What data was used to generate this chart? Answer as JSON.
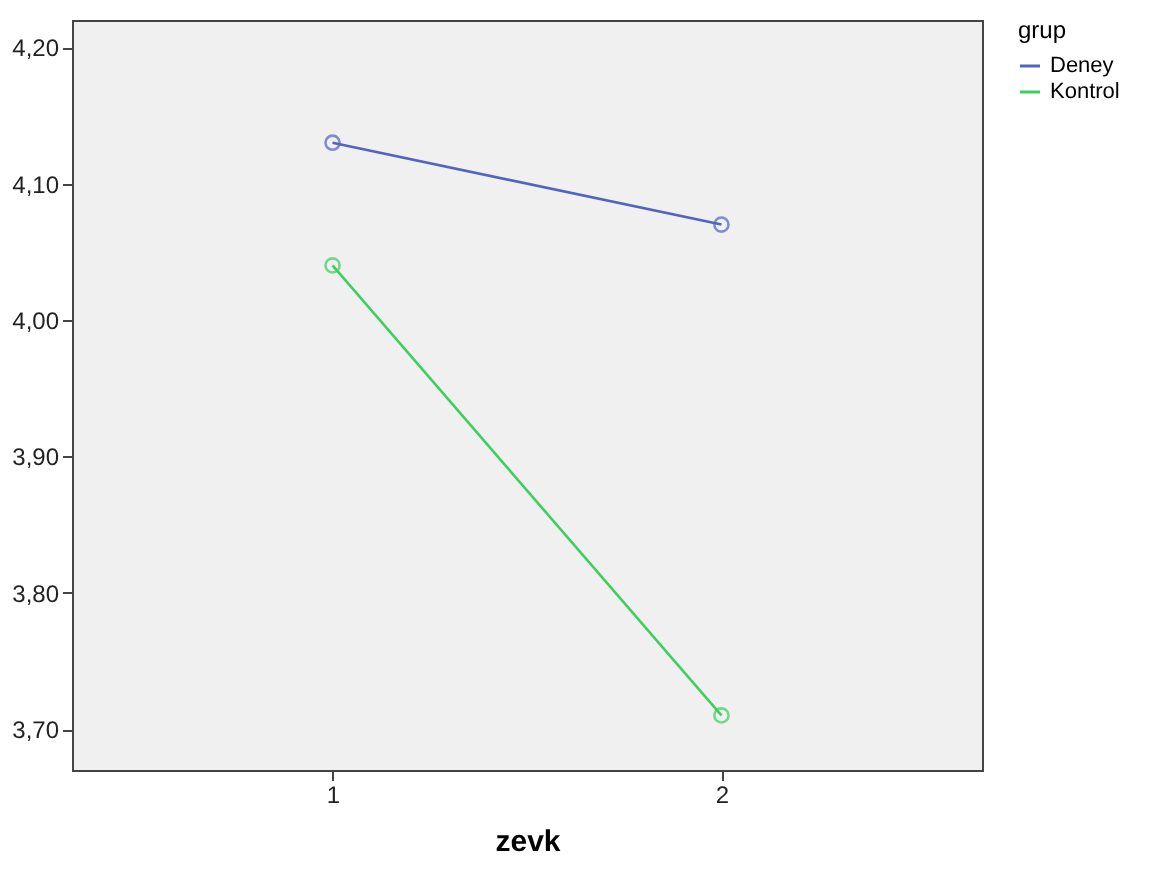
{
  "chart_data": {
    "type": "line",
    "xlabel": "zevk",
    "legend_title": "grup",
    "legend": "right",
    "marker": "circle",
    "grid": false,
    "x": [
      1,
      2
    ],
    "series": [
      {
        "name": "Deney",
        "color": "#5064c0",
        "values": [
          4.13,
          4.07
        ]
      },
      {
        "name": "Kontrol",
        "color": "#3ecf5c",
        "values": [
          4.04,
          3.71
        ]
      }
    ],
    "xlim": [
      0.33,
      2.67
    ],
    "xticks": [
      1,
      2
    ],
    "ylim": [
      3.67,
      4.22
    ],
    "yticks": [
      {
        "value": 3.7,
        "label": "3,70"
      },
      {
        "value": 3.8,
        "label": "3,80"
      },
      {
        "value": 3.9,
        "label": "3,90"
      },
      {
        "value": 4.0,
        "label": "4,00"
      },
      {
        "value": 4.1,
        "label": "4,10"
      },
      {
        "value": 4.2,
        "label": "4,20"
      }
    ]
  }
}
